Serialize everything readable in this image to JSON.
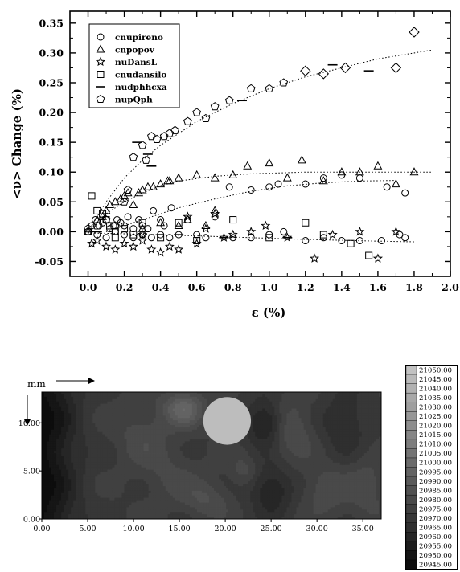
{
  "chart_data": [
    {
      "type": "scatter",
      "ylabel": "<ν> Change (%)",
      "xlabel": "ε (%)",
      "xlim": [
        -0.1,
        2.0
      ],
      "ylim": [
        -0.075,
        0.37
      ],
      "xticks": [
        "0.0",
        "0.2",
        "0.4",
        "0.6",
        "0.8",
        "1.0",
        "1.2",
        "1.4",
        "1.6",
        "1.8",
        "2.0"
      ],
      "yticks": [
        "-0.05",
        "0.00",
        "0.05",
        "0.10",
        "0.15",
        "0.20",
        "0.25",
        "0.30",
        "0.35"
      ],
      "legend_position": "top-left",
      "series": [
        {
          "name": "cnupireno",
          "marker": "circle",
          "points": [
            [
              0.0,
              0.0
            ],
            [
              0.02,
              0.01
            ],
            [
              0.04,
              0.02
            ],
            [
              0.06,
              0.01
            ],
            [
              0.08,
              0.015
            ],
            [
              0.1,
              0.02
            ],
            [
              0.12,
              0.005
            ],
            [
              0.14,
              0.01
            ],
            [
              0.16,
              0.02
            ],
            [
              0.18,
              0.015
            ],
            [
              0.2,
              0.01
            ],
            [
              0.22,
              0.025
            ],
            [
              0.25,
              0.005
            ],
            [
              0.28,
              0.02
            ],
            [
              0.3,
              0.01
            ],
            [
              0.33,
              0.005
            ],
            [
              0.36,
              0.035
            ],
            [
              0.4,
              0.02
            ],
            [
              0.42,
              0.01
            ],
            [
              0.46,
              0.04
            ],
            [
              0.05,
              -0.005
            ],
            [
              0.1,
              -0.01
            ],
            [
              0.15,
              0.0
            ],
            [
              0.2,
              -0.005
            ],
            [
              0.25,
              -0.01
            ],
            [
              0.3,
              -0.005
            ],
            [
              0.35,
              -0.01
            ],
            [
              0.4,
              -0.005
            ],
            [
              0.45,
              -0.01
            ],
            [
              0.5,
              -0.005
            ],
            [
              0.55,
              0.02
            ],
            [
              0.6,
              -0.005
            ],
            [
              0.65,
              -0.01
            ],
            [
              0.7,
              0.025
            ],
            [
              0.78,
              0.075
            ],
            [
              0.9,
              0.07
            ],
            [
              1.0,
              0.075
            ],
            [
              1.05,
              0.08
            ],
            [
              1.2,
              0.08
            ],
            [
              1.3,
              0.09
            ],
            [
              1.4,
              0.095
            ],
            [
              1.5,
              0.09
            ],
            [
              1.65,
              0.075
            ],
            [
              1.75,
              0.065
            ],
            [
              0.8,
              -0.01
            ],
            [
              0.9,
              -0.01
            ],
            [
              1.0,
              -0.005
            ],
            [
              1.08,
              0.0
            ],
            [
              1.2,
              -0.015
            ],
            [
              1.3,
              -0.01
            ],
            [
              1.4,
              -0.015
            ],
            [
              1.5,
              -0.015
            ],
            [
              1.62,
              -0.015
            ],
            [
              1.72,
              -0.005
            ],
            [
              1.75,
              -0.01
            ]
          ]
        },
        {
          "name": "cnpopov",
          "marker": "triangle",
          "points": [
            [
              0.0,
              0.0
            ],
            [
              0.05,
              0.02
            ],
            [
              0.08,
              0.025
            ],
            [
              0.1,
              0.035
            ],
            [
              0.12,
              0.045
            ],
            [
              0.15,
              0.05
            ],
            [
              0.18,
              0.055
            ],
            [
              0.2,
              0.06
            ],
            [
              0.22,
              0.065
            ],
            [
              0.25,
              0.045
            ],
            [
              0.28,
              0.065
            ],
            [
              0.3,
              0.07
            ],
            [
              0.33,
              0.075
            ],
            [
              0.36,
              0.075
            ],
            [
              0.4,
              0.08
            ],
            [
              0.44,
              0.085
            ],
            [
              0.5,
              0.09
            ],
            [
              0.6,
              0.095
            ],
            [
              0.7,
              0.09
            ],
            [
              0.8,
              0.095
            ],
            [
              0.88,
              0.11
            ],
            [
              1.0,
              0.115
            ],
            [
              1.1,
              0.09
            ],
            [
              1.18,
              0.12
            ],
            [
              1.3,
              0.085
            ],
            [
              1.4,
              0.1
            ],
            [
              1.5,
              0.1
            ],
            [
              1.6,
              0.11
            ],
            [
              1.7,
              0.08
            ],
            [
              1.8,
              0.1
            ],
            [
              0.7,
              0.035
            ],
            [
              0.3,
              0.005
            ],
            [
              0.4,
              0.015
            ],
            [
              0.5,
              0.01
            ],
            [
              0.55,
              0.02
            ],
            [
              0.65,
              0.01
            ],
            [
              0.45,
              0.085
            ]
          ]
        },
        {
          "name": "nuDansL",
          "marker": "star",
          "points": [
            [
              0.02,
              -0.02
            ],
            [
              0.05,
              -0.015
            ],
            [
              0.1,
              -0.025
            ],
            [
              0.15,
              -0.03
            ],
            [
              0.2,
              -0.02
            ],
            [
              0.25,
              -0.025
            ],
            [
              0.3,
              -0.015
            ],
            [
              0.35,
              -0.03
            ],
            [
              0.4,
              -0.035
            ],
            [
              0.45,
              -0.025
            ],
            [
              0.5,
              -0.03
            ],
            [
              0.55,
              0.025
            ],
            [
              0.6,
              -0.02
            ],
            [
              0.65,
              0.005
            ],
            [
              0.7,
              0.03
            ],
            [
              0.75,
              -0.01
            ],
            [
              0.8,
              -0.005
            ],
            [
              0.9,
              0.0
            ],
            [
              0.98,
              0.01
            ],
            [
              1.1,
              -0.01
            ],
            [
              1.25,
              -0.045
            ],
            [
              1.35,
              -0.005
            ],
            [
              1.5,
              0.0
            ],
            [
              1.6,
              -0.045
            ],
            [
              1.7,
              0.0
            ],
            [
              0.3,
              -0.005
            ]
          ]
        },
        {
          "name": "cnudansilo",
          "marker": "square",
          "points": [
            [
              0.02,
              0.06
            ],
            [
              0.05,
              0.035
            ],
            [
              0.08,
              0.03
            ],
            [
              0.1,
              0.02
            ],
            [
              0.12,
              0.01
            ],
            [
              0.15,
              0.0
            ],
            [
              0.2,
              0.005
            ],
            [
              0.25,
              -0.005
            ],
            [
              0.3,
              0.015
            ],
            [
              0.4,
              -0.01
            ],
            [
              0.5,
              0.015
            ],
            [
              0.6,
              -0.015
            ],
            [
              0.8,
              0.02
            ],
            [
              1.0,
              -0.01
            ],
            [
              1.2,
              0.015
            ],
            [
              1.3,
              -0.005
            ],
            [
              1.45,
              -0.02
            ],
            [
              1.55,
              -0.04
            ],
            [
              0.15,
              -0.01
            ]
          ]
        },
        {
          "name": "nudphhcxa",
          "marker": "dash",
          "points": [
            [
              0.05,
              0.0
            ],
            [
              0.15,
              0.015
            ],
            [
              0.27,
              0.15
            ],
            [
              0.33,
              0.13
            ],
            [
              0.35,
              0.11
            ],
            [
              0.5,
              -0.005
            ],
            [
              0.75,
              -0.01
            ],
            [
              0.85,
              0.22
            ],
            [
              1.1,
              -0.01
            ],
            [
              1.35,
              0.28
            ],
            [
              1.55,
              0.27
            ]
          ]
        },
        {
          "name": "nupQph",
          "marker": "pentagon",
          "points": [
            [
              0.0,
              0.0
            ],
            [
              0.05,
              0.01
            ],
            [
              0.1,
              0.02
            ],
            [
              0.15,
              0.01
            ],
            [
              0.2,
              0.05
            ],
            [
              0.22,
              0.07
            ],
            [
              0.25,
              0.125
            ],
            [
              0.3,
              0.145
            ],
            [
              0.32,
              0.12
            ],
            [
              0.35,
              0.16
            ],
            [
              0.38,
              0.155
            ],
            [
              0.42,
              0.16
            ],
            [
              0.45,
              0.165
            ],
            [
              0.48,
              0.17
            ],
            [
              0.55,
              0.185
            ],
            [
              0.6,
              0.2
            ],
            [
              0.65,
              0.19
            ],
            [
              0.7,
              0.21
            ],
            [
              0.78,
              0.22
            ],
            [
              0.9,
              0.24
            ],
            [
              1.0,
              0.24
            ],
            [
              1.08,
              0.25
            ],
            [
              1.2,
              0.27
            ],
            [
              1.3,
              0.265
            ],
            [
              1.42,
              0.275
            ],
            [
              1.7,
              0.275
            ],
            [
              1.8,
              0.335
            ],
            [
              0.0,
              0.005
            ]
          ]
        }
      ],
      "fit_curves": [
        {
          "points": [
            [
              0.0,
              0.0
            ],
            [
              0.1,
              0.05
            ],
            [
              0.2,
              0.09
            ],
            [
              0.3,
              0.12
            ],
            [
              0.4,
              0.145
            ],
            [
              0.6,
              0.185
            ],
            [
              0.8,
              0.215
            ],
            [
              1.0,
              0.24
            ],
            [
              1.2,
              0.26
            ],
            [
              1.4,
              0.275
            ],
            [
              1.6,
              0.29
            ],
            [
              1.9,
              0.305
            ]
          ]
        },
        {
          "points": [
            [
              0.0,
              0.0
            ],
            [
              0.1,
              0.03
            ],
            [
              0.2,
              0.05
            ],
            [
              0.3,
              0.065
            ],
            [
              0.4,
              0.077
            ],
            [
              0.5,
              0.085
            ],
            [
              0.7,
              0.093
            ],
            [
              0.9,
              0.097
            ],
            [
              1.2,
              0.1
            ],
            [
              1.6,
              0.1
            ],
            [
              1.9,
              0.1
            ]
          ]
        },
        {
          "points": [
            [
              0.1,
              0.0
            ],
            [
              0.3,
              0.02
            ],
            [
              0.5,
              0.04
            ],
            [
              0.7,
              0.055
            ],
            [
              0.9,
              0.068
            ],
            [
              1.1,
              0.077
            ],
            [
              1.3,
              0.082
            ],
            [
              1.5,
              0.085
            ],
            [
              1.7,
              0.086
            ]
          ]
        },
        {
          "points": [
            [
              0.0,
              -0.002
            ],
            [
              0.4,
              -0.005
            ],
            [
              0.8,
              -0.009
            ],
            [
              1.2,
              -0.013
            ],
            [
              1.6,
              -0.016
            ],
            [
              1.8,
              -0.017
            ]
          ]
        }
      ]
    },
    {
      "type": "heatmap",
      "unit_label": "mm",
      "xlim": [
        0,
        37
      ],
      "ylim": [
        0,
        13.2
      ],
      "xticks": [
        "0.00",
        "5.00",
        "10.00",
        "15.00",
        "20.00",
        "25.00",
        "30.00",
        "35.00"
      ],
      "yticks": [
        "0.00",
        "5.00",
        "10.00"
      ],
      "circle": {
        "cx": 20.2,
        "cy": 10.2,
        "r": 2.6,
        "color": "#bdbdbd"
      },
      "hotspots": [
        {
          "x": 0.0,
          "y": 6.0,
          "sx": 3.5,
          "sy": 30.0,
          "v": -25
        },
        {
          "x": 15.5,
          "y": 11.5,
          "sx": 2.2,
          "sy": 1.8,
          "v": 22
        },
        {
          "x": 11.0,
          "y": 9.0,
          "sx": 3.0,
          "sy": 3.5,
          "v": 8
        },
        {
          "x": 24.5,
          "y": 10.0,
          "sx": 2.0,
          "sy": 2.2,
          "v": -20
        },
        {
          "x": 27.0,
          "y": 9.5,
          "sx": 2.5,
          "sy": 3.0,
          "v": 12
        },
        {
          "x": 25.0,
          "y": 3.0,
          "sx": 2.2,
          "sy": 2.5,
          "v": -15
        },
        {
          "x": 22.0,
          "y": 5.0,
          "sx": 1.5,
          "sy": 1.5,
          "v": 8
        },
        {
          "x": 33.0,
          "y": 10.0,
          "sx": 2.5,
          "sy": 3.0,
          "v": -10
        },
        {
          "x": 31.0,
          "y": 3.0,
          "sx": 2.5,
          "sy": 2.5,
          "v": 10
        },
        {
          "x": 18.0,
          "y": 2.0,
          "sx": 2.5,
          "sy": 2.0,
          "v": 10
        },
        {
          "x": 35.5,
          "y": 3.0,
          "sx": 2.0,
          "sy": 4.0,
          "v": 8
        },
        {
          "x": 14.0,
          "y": 4.5,
          "sx": 3.0,
          "sy": 3.0,
          "v": 6
        }
      ],
      "base_value": 28,
      "colorbar": {
        "labels": [
          "21050.00",
          "21045.00",
          "21040.00",
          "21035.00",
          "21030.00",
          "21025.00",
          "21020.00",
          "21015.00",
          "21010.00",
          "21005.00",
          "21000.00",
          "20995.00",
          "20990.00",
          "20985.00",
          "20980.00",
          "20975.00",
          "20970.00",
          "20965.00",
          "20960.00",
          "20955.00",
          "20950.00",
          "20945.00"
        ],
        "color_top": "#c2c2c2",
        "color_bottom": "#0c0c0c"
      }
    }
  ]
}
